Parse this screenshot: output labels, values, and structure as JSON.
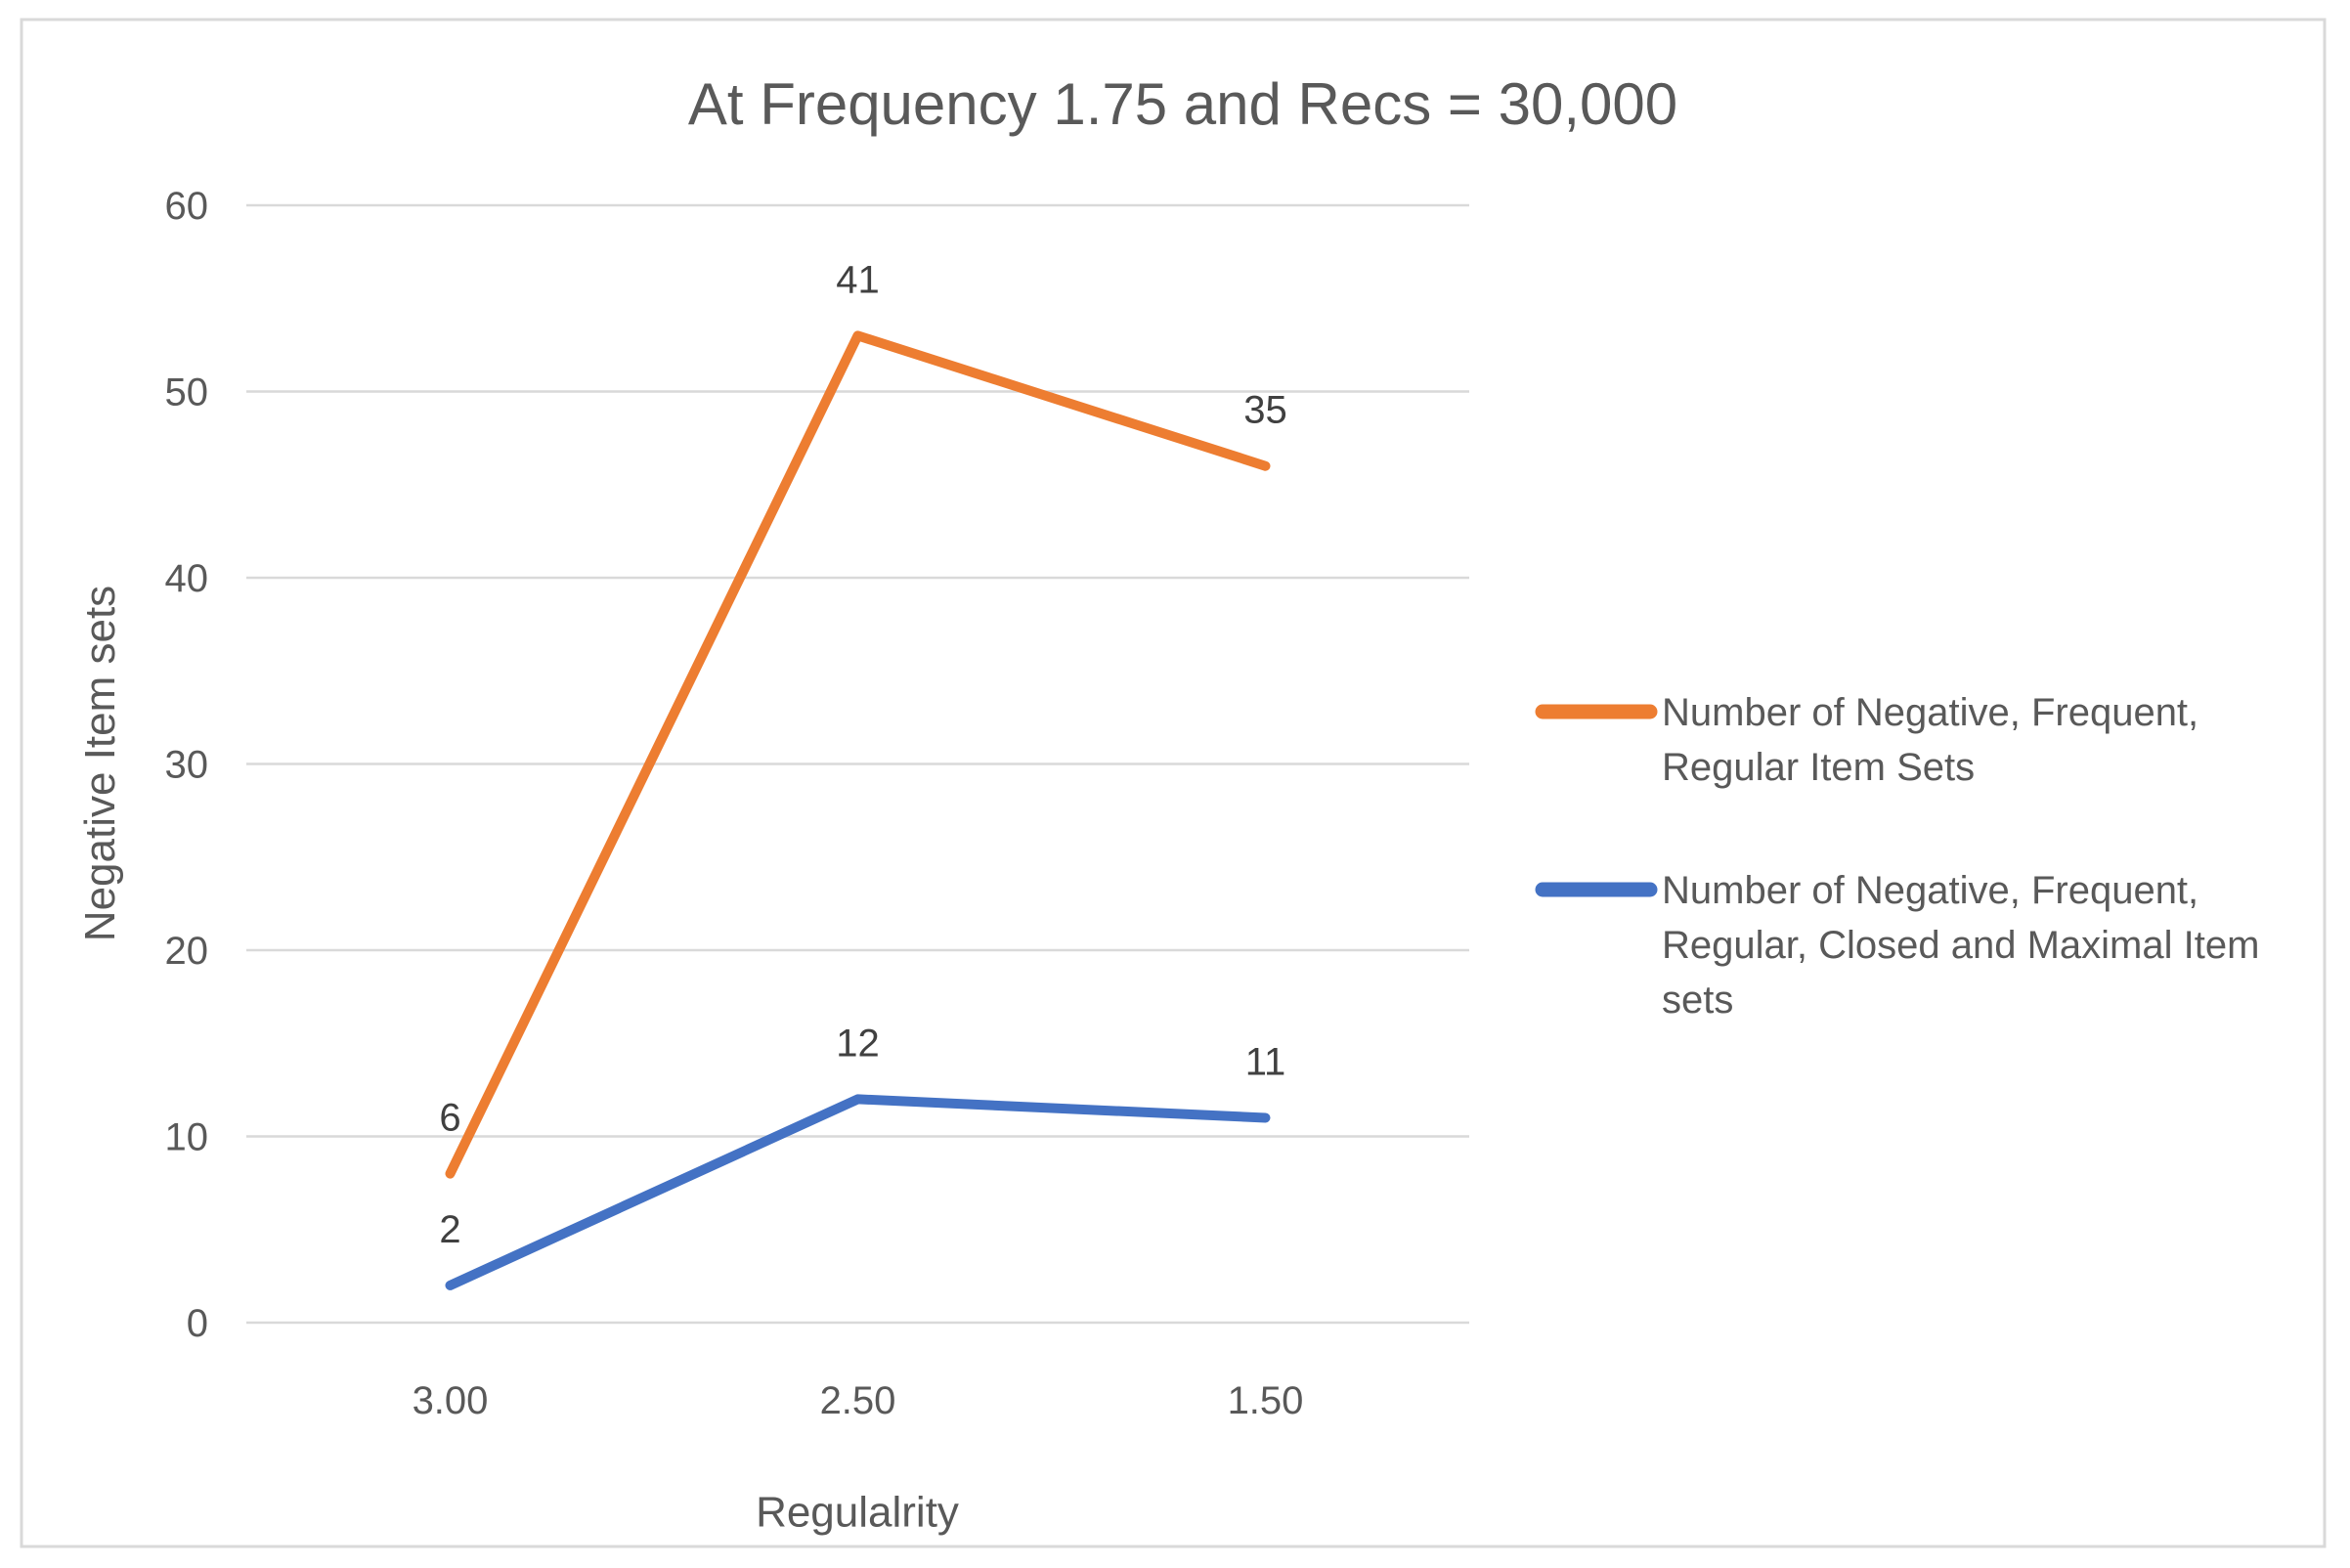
{
  "palette": {
    "background": "#FFFFFF",
    "frame_border": "#D9D9D9",
    "gridline": "#D9D9D9",
    "title_text": "#595959",
    "axis_text": "#595959",
    "data_label_text": "#404040",
    "legend_text": "#595959",
    "series_orange": "#ED7D31",
    "series_blue": "#4472C4"
  },
  "chart_data": {
    "type": "line",
    "stacked": true,
    "title": "At Frequency 1.75 and Recs = 30,000",
    "xlabel": "Regulalrity",
    "ylabel": "Negative Item sets",
    "categories": [
      "3.00",
      "2.50",
      "1.50"
    ],
    "ylim": [
      0,
      60
    ],
    "ytick_step": 10,
    "yticks": [
      "0",
      "10",
      "20",
      "30",
      "40",
      "50",
      "60"
    ],
    "grid": true,
    "legend_position": "right",
    "series": [
      {
        "name": "Number of  Negative, Frequent, Regular Item Sets",
        "legend_lines": [
          "Number of  Negative, Frequent,",
          "Regular Item Sets"
        ],
        "color": "#ED7D31",
        "values": [
          6,
          41,
          35
        ],
        "data_labels": [
          "6",
          "41",
          "35"
        ],
        "plotted_values": [
          8,
          53,
          46
        ]
      },
      {
        "name": "Number of Negative, Frequent, Regular, Closed and Maximal Item sets",
        "legend_lines": [
          "Number of Negative, Frequent,",
          "Regular, Closed and Maximal Item",
          "sets"
        ],
        "color": "#4472C4",
        "values": [
          2,
          12,
          11
        ],
        "data_labels": [
          "2",
          "12",
          "11"
        ],
        "plotted_values": [
          2,
          12,
          11
        ]
      }
    ]
  }
}
